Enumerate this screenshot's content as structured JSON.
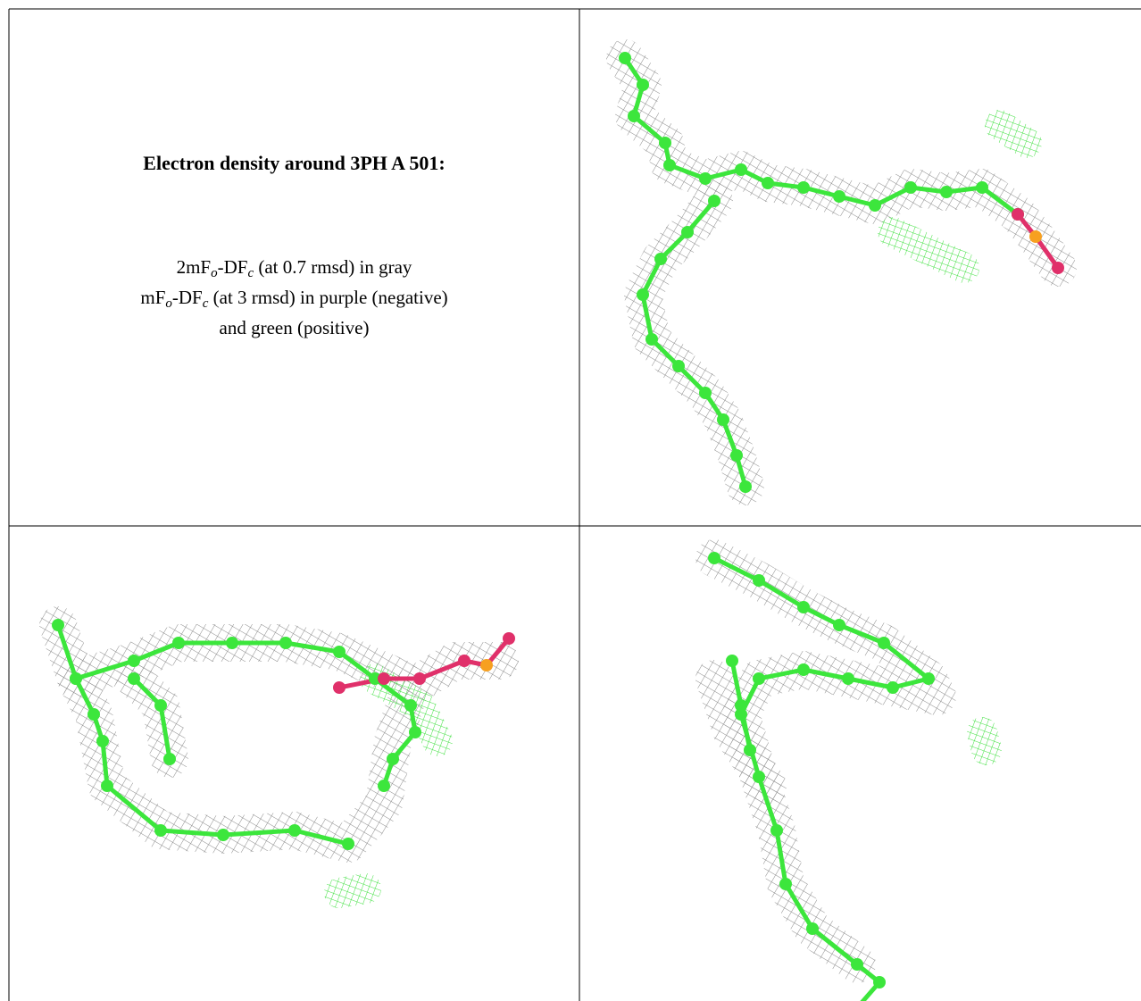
{
  "title": "Electron density around 3PH A 501:",
  "legend": [
    {
      "parts": [
        "2mF",
        "o",
        "-DF",
        "c",
        " (at 0.7 rmsd) in gray"
      ]
    },
    {
      "parts": [
        "mF",
        "o",
        "-DF",
        "c",
        " (at 3 rmsd) in purple (negative)"
      ]
    },
    {
      "parts": [
        "and green (positive)"
      ]
    }
  ]
}
